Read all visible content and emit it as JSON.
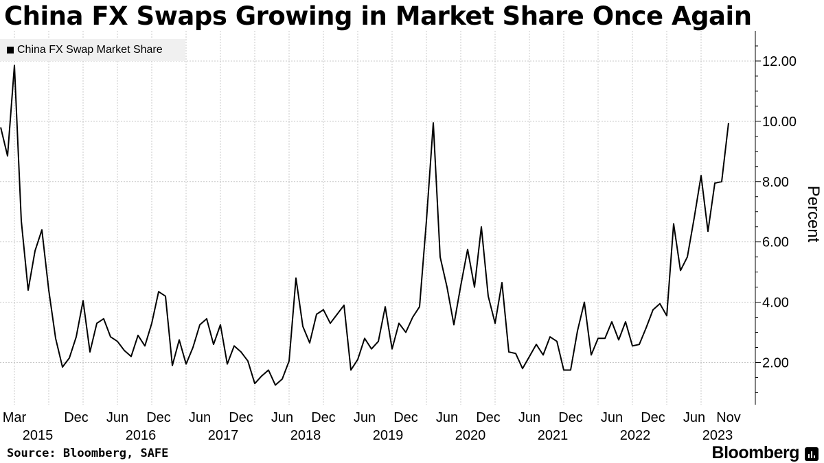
{
  "title": "China FX Swaps Growing in Market Share Once Again",
  "legend": {
    "label": "China FX Swap Market Share",
    "color": "#000000"
  },
  "source": "Source: Bloomberg, SAFE",
  "brand": "Bloomberg",
  "chart_data": {
    "type": "line",
    "title": "China FX Swaps Growing in Market Share Once Again",
    "xlabel": "",
    "ylabel": "Percent",
    "ylim": [
      0.6,
      13.0
    ],
    "yticks": [
      2,
      4,
      6,
      8,
      10,
      12
    ],
    "ytick_labels": [
      "2.00",
      "4.00",
      "6.00",
      "8.00",
      "10.00",
      "12.00"
    ],
    "xlim": [
      0,
      107.2
    ],
    "xticks": [
      {
        "index": 2,
        "month": "Mar",
        "year": "2015"
      },
      {
        "index": 11,
        "month": "Dec",
        "year": ""
      },
      {
        "index": 17,
        "month": "Jun",
        "year": "2016"
      },
      {
        "index": 23,
        "month": "Dec",
        "year": ""
      },
      {
        "index": 29,
        "month": "Jun",
        "year": "2017"
      },
      {
        "index": 35,
        "month": "Dec",
        "year": ""
      },
      {
        "index": 41,
        "month": "Jun",
        "year": "2018"
      },
      {
        "index": 47,
        "month": "Dec",
        "year": ""
      },
      {
        "index": 53,
        "month": "Jun",
        "year": "2019"
      },
      {
        "index": 59,
        "month": "Dec",
        "year": ""
      },
      {
        "index": 65,
        "month": "Jun",
        "year": "2020"
      },
      {
        "index": 71,
        "month": "Dec",
        "year": ""
      },
      {
        "index": 77,
        "month": "Jun",
        "year": "2021"
      },
      {
        "index": 83,
        "month": "Dec",
        "year": ""
      },
      {
        "index": 89,
        "month": "Jun",
        "year": "2022"
      },
      {
        "index": 95,
        "month": "Dec",
        "year": ""
      },
      {
        "index": 101,
        "month": "Jun",
        "year": "2023"
      },
      {
        "index": 106,
        "month": "Nov",
        "year": ""
      }
    ],
    "grid": true,
    "legend_position": "top-left",
    "series": [
      {
        "name": "China FX Swap Market Share",
        "color": "#000000",
        "start": "Jan 2015",
        "end": "Nov 2023",
        "frequency": "monthly",
        "values": [
          9.8,
          8.85,
          11.85,
          6.7,
          4.4,
          5.7,
          6.4,
          4.4,
          2.8,
          1.85,
          2.15,
          2.85,
          4.05,
          2.35,
          3.3,
          3.45,
          2.85,
          2.7,
          2.4,
          2.2,
          2.9,
          2.55,
          3.3,
          4.35,
          4.2,
          1.9,
          2.75,
          1.95,
          2.5,
          3.25,
          3.45,
          2.6,
          3.25,
          1.95,
          2.55,
          2.35,
          2.05,
          1.3,
          1.55,
          1.75,
          1.25,
          1.45,
          2.05,
          4.8,
          3.2,
          2.65,
          3.6,
          3.75,
          3.3,
          3.6,
          3.9,
          1.75,
          2.1,
          2.8,
          2.45,
          2.7,
          3.85,
          2.45,
          3.3,
          3.0,
          3.5,
          3.85,
          6.7,
          9.95,
          5.5,
          4.5,
          3.25,
          4.55,
          5.75,
          4.5,
          6.5,
          4.2,
          3.3,
          4.65,
          2.35,
          2.3,
          1.8,
          2.2,
          2.6,
          2.25,
          2.85,
          2.7,
          1.75,
          1.75,
          3.05,
          4.0,
          2.25,
          2.8,
          2.8,
          3.35,
          2.75,
          3.35,
          2.55,
          2.6,
          3.15,
          3.75,
          3.95,
          3.55,
          6.6,
          5.05,
          5.5,
          6.8,
          8.2,
          6.35,
          7.95,
          8.0,
          9.95
        ]
      }
    ]
  }
}
